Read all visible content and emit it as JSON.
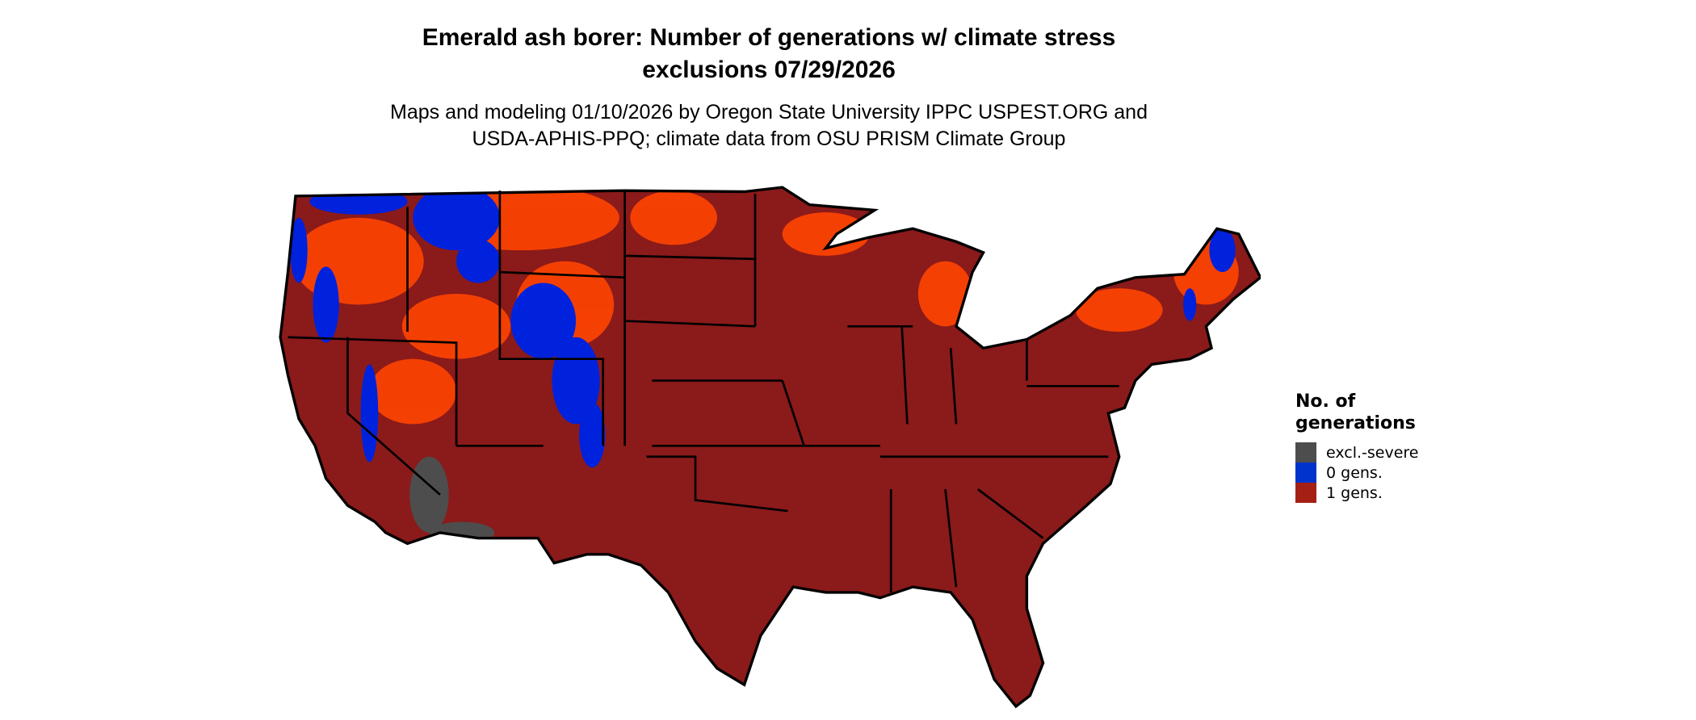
{
  "title": {
    "line1": "Emerald ash borer: Number of generations w/ climate stress",
    "line2": "exclusions 07/29/2026"
  },
  "subtitle": {
    "line1": "Maps and modeling 01/10/2026 by Oregon State University IPPC USPEST.ORG and",
    "line2": "USDA-APHIS-PPQ; climate data from OSU PRISM Climate Group"
  },
  "map": {
    "region": "Contiguous United States",
    "colors": {
      "excl_severe": "#4d4d4d",
      "zero_gens": "#0022dd",
      "one_gens": "#8b1a1a",
      "one_gens_light": "#ff4500",
      "borders": "#000000"
    }
  },
  "legend": {
    "title_line1": "No. of",
    "title_line2": "generations",
    "items": [
      {
        "label": "excl.-severe",
        "color": "#4d4d4d"
      },
      {
        "label": "0 gens.",
        "color": "#0033cc"
      },
      {
        "label": "1 gens.",
        "color": "#a52014"
      }
    ]
  }
}
